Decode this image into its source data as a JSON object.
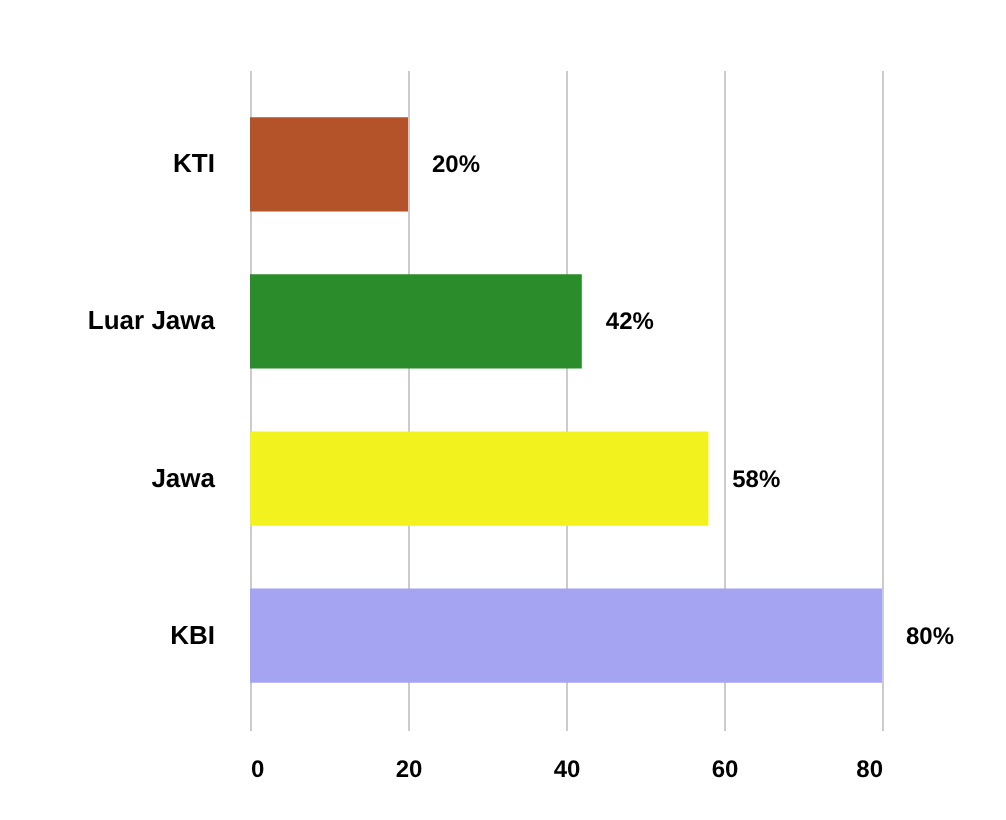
{
  "chart_data": {
    "type": "bar",
    "orientation": "horizontal",
    "categories": [
      "KTI",
      "Luar Jawa",
      "Jawa",
      "KBI"
    ],
    "values": [
      20,
      42,
      58,
      80
    ],
    "colors": [
      "#b4532a",
      "#2a8c2a",
      "#f2f21e",
      "#a4a4f2"
    ],
    "value_labels": [
      "20%",
      "42%",
      "58%",
      "80%"
    ],
    "xlim": [
      0,
      80
    ],
    "xticks": [
      0,
      20,
      40,
      60,
      80
    ],
    "grid": "x"
  }
}
